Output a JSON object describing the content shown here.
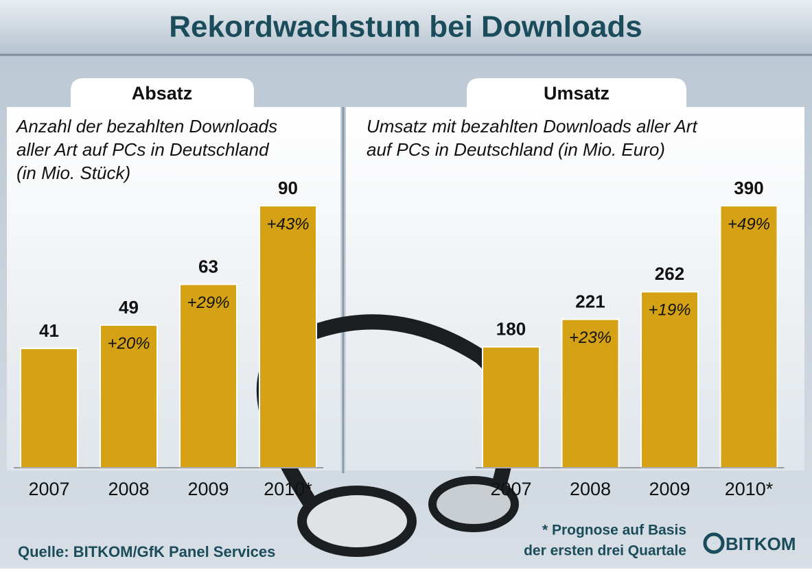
{
  "title": "Rekordwachstum bei Downloads",
  "chart_data": [
    {
      "type": "bar",
      "title": "Absatz",
      "subtitle": [
        "Anzahl der bezahlten Downloads",
        "aller Art auf PCs in Deutschland",
        "(in Mio. Stück)"
      ],
      "categories": [
        "2007",
        "2008",
        "2009",
        "2010*"
      ],
      "values": [
        41,
        49,
        63,
        90
      ],
      "growth_labels": [
        null,
        "+20%",
        "+29%",
        "+43%"
      ],
      "color": "#d4a214"
    },
    {
      "type": "bar",
      "title": "Umsatz",
      "subtitle": [
        "Umsatz mit bezahlten Downloads aller Art",
        "auf PCs in Deutschland (in Mio. Euro)"
      ],
      "categories": [
        "2007",
        "2008",
        "2009",
        "2010*"
      ],
      "values": [
        180,
        221,
        262,
        390
      ],
      "growth_labels": [
        null,
        "+23%",
        "+19%",
        "+49%"
      ],
      "color": "#d4a214"
    }
  ],
  "note": [
    "* Prognose auf Basis",
    "der ersten drei Quartale"
  ],
  "source": "Quelle: BITKOM/GfK Panel Services",
  "logo": "BITKOM"
}
